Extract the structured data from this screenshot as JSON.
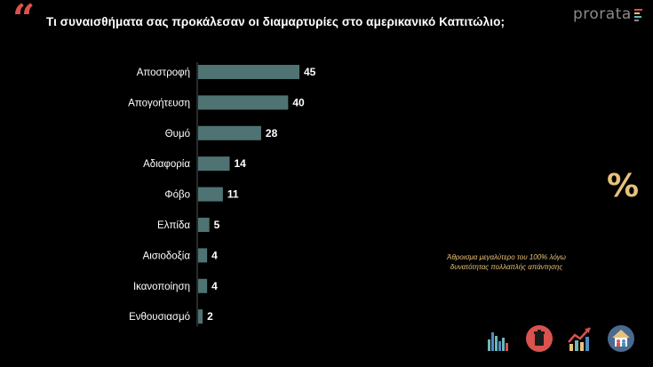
{
  "question": "Τι συναισθήματα σας προκάλεσαν οι διαμαρτυρίες στο αμερικανικό Καπιτώλιο;",
  "quote_glyph": "“",
  "brand": {
    "name": "prorata",
    "bar_colors": [
      "#d9534f",
      "#e8c27a",
      "#6fb7b7",
      "#8a8a8a"
    ]
  },
  "percent_symbol": "%",
  "note_line1": "Άθροισμα μεγαλύτερο του 100% λόγω",
  "note_line2": "δυνατότητας πολλαπλής απάντησης",
  "colors": {
    "bar": "#4f7373",
    "accent_red": "#d9534f",
    "accent_gold": "#e8c27a"
  },
  "footer_icons": [
    "bar-chart-icon",
    "trash-bin-icon",
    "trend-up-icon",
    "home-people-icon"
  ],
  "chart_data": {
    "type": "bar",
    "orientation": "horizontal",
    "categories": [
      "Αποστροφή",
      "Απογοήτευση",
      "Θυμό",
      "Αδιαφορία",
      "Φόβο",
      "Ελπίδα",
      "Αισιοδοξία",
      "Ικανοποίηση",
      "Ενθουσιασμό"
    ],
    "values": [
      45,
      40,
      28,
      14,
      11,
      5,
      4,
      4,
      2
    ],
    "data_labels": [
      "45",
      "40",
      "28",
      "14",
      "11",
      "5",
      "4",
      "4",
      "2"
    ],
    "title": "Τι συναισθήματα σας προκάλεσαν οι διαμαρτυρίες στο αμερικανικό Καπιτώλιο;",
    "xlabel": "",
    "ylabel": "",
    "xlim": [
      0,
      45
    ],
    "grid": false,
    "legend": "none"
  }
}
